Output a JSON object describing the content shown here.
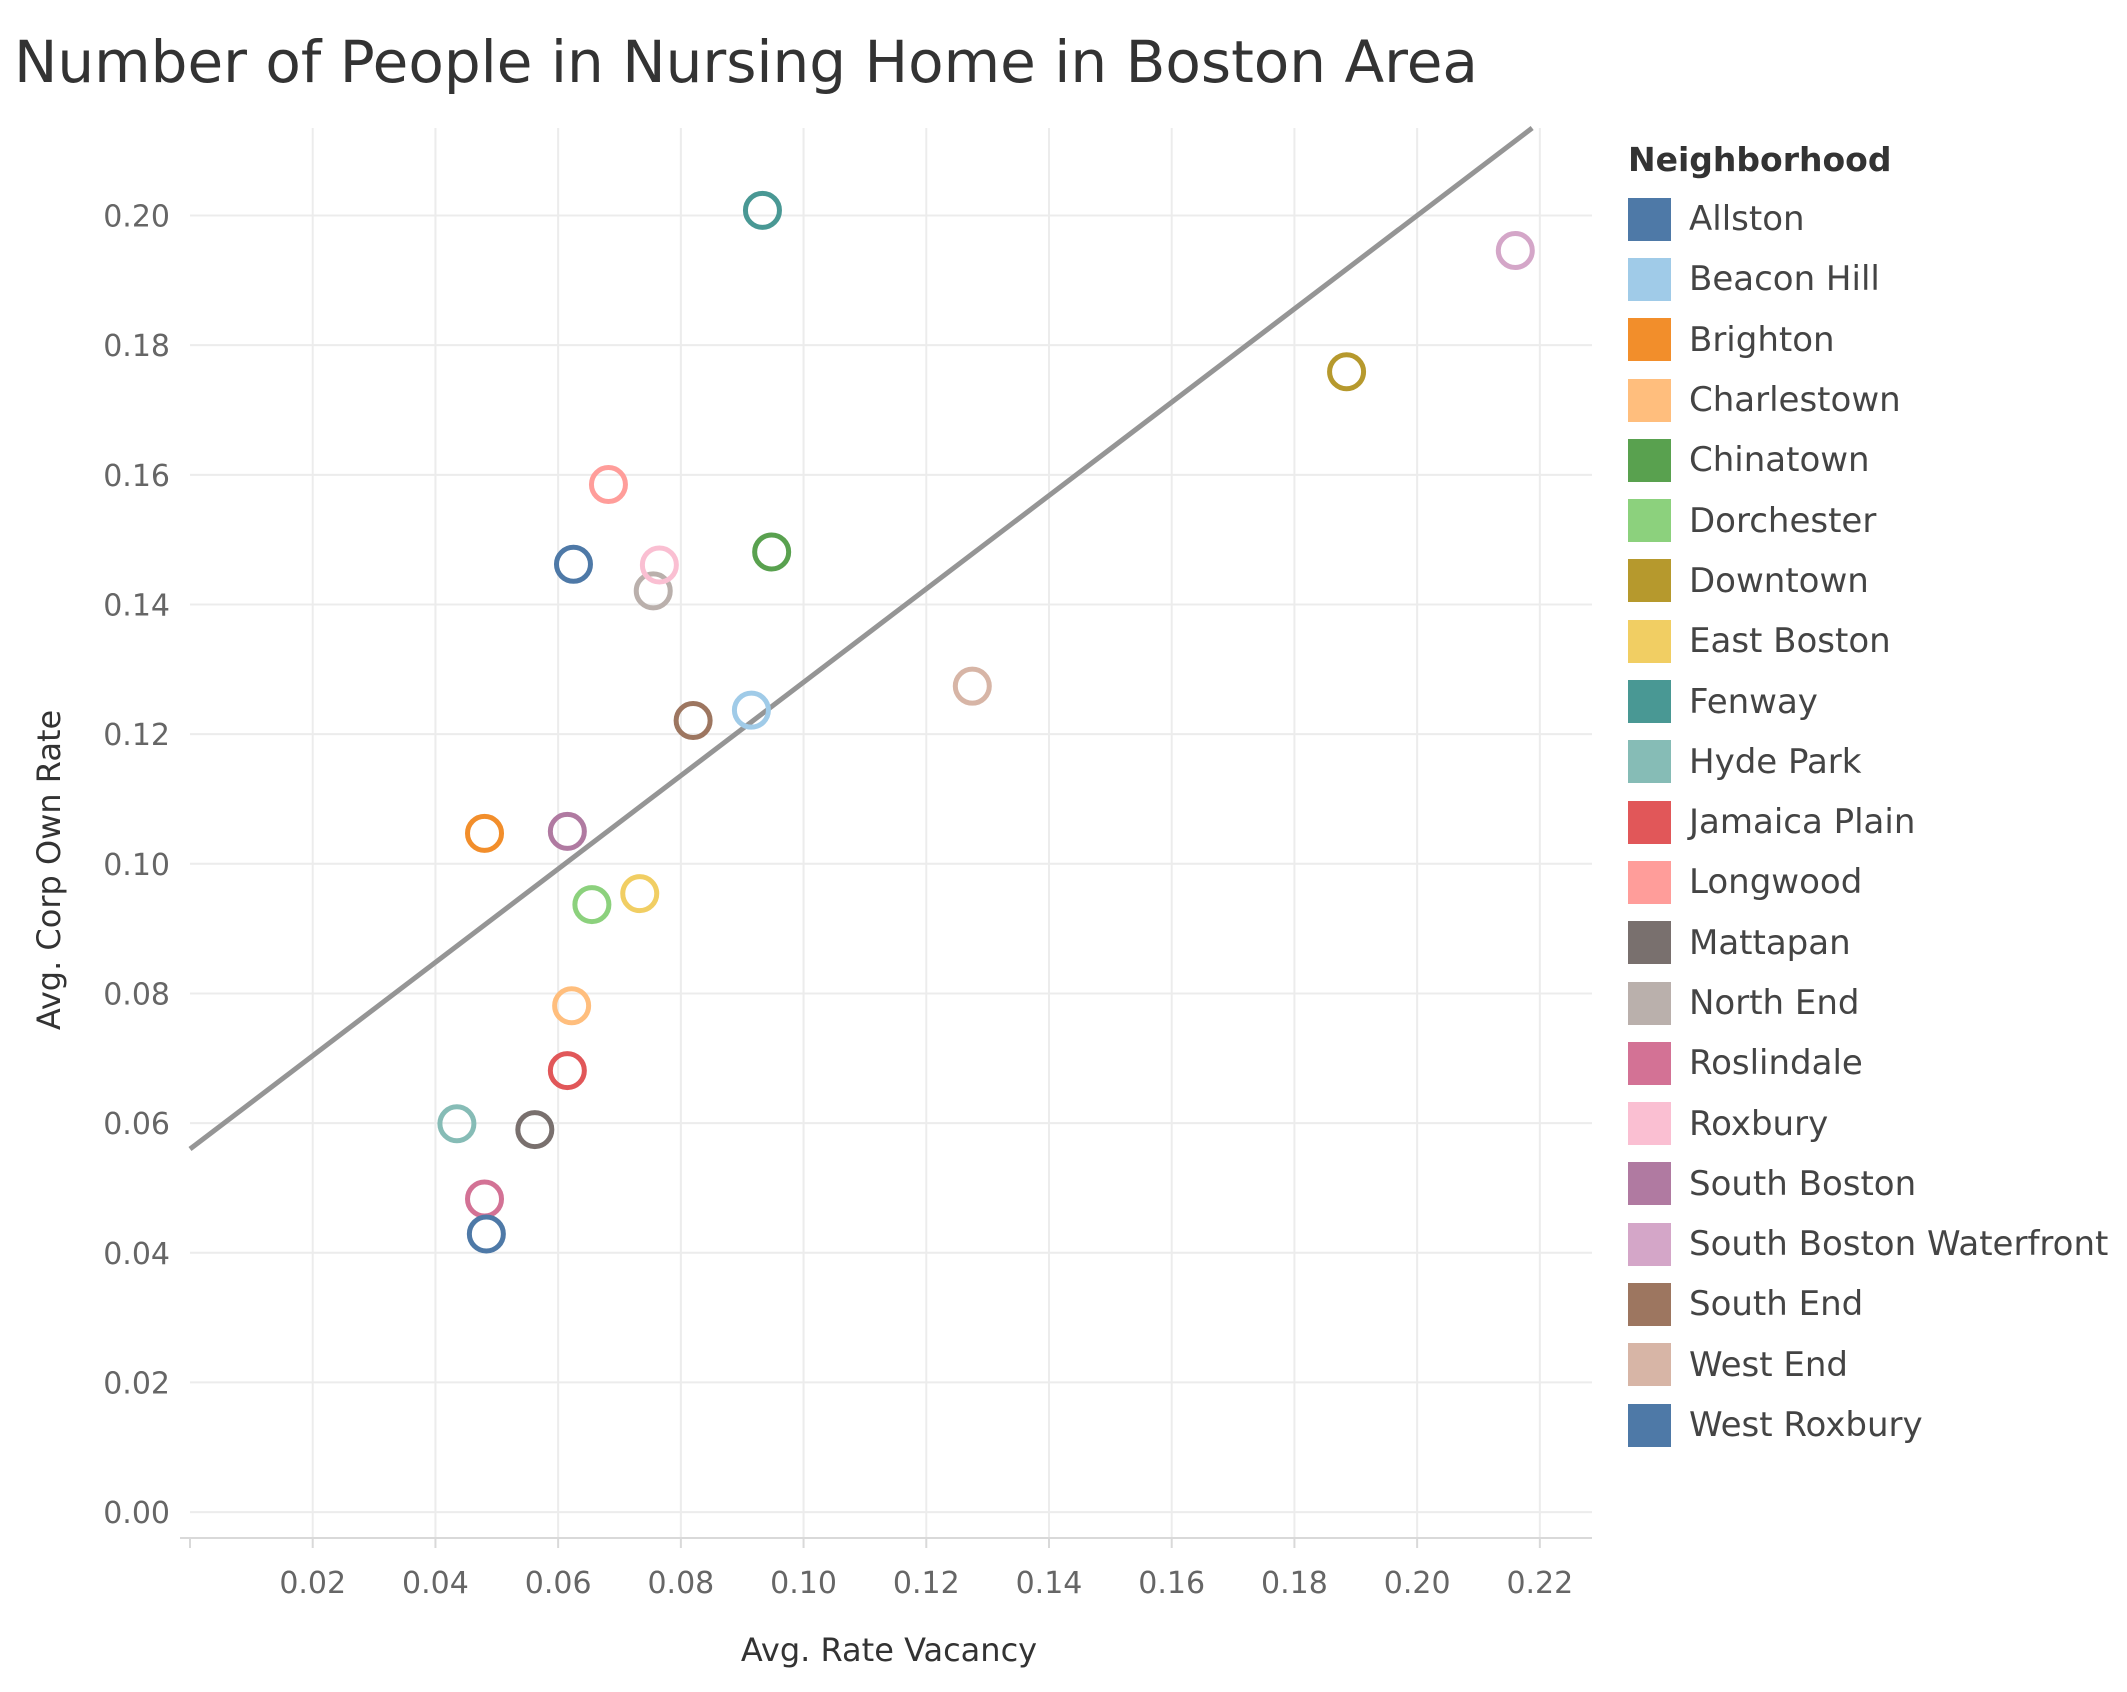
{
  "chart_data": {
    "type": "scatter",
    "title": "Number of People in Nursing Home in Boston Area",
    "xlabel": "Avg. Rate Vacancy",
    "ylabel": "Avg. Corp Own Rate",
    "xlim": [
      0.0,
      0.2285
    ],
    "ylim": [
      -0.004,
      0.2135
    ],
    "x_ticks": [
      "0.02",
      "0.04",
      "0.06",
      "0.08",
      "0.10",
      "0.12",
      "0.14",
      "0.16",
      "0.18",
      "0.20",
      "0.22"
    ],
    "y_ticks": [
      "0.00",
      "0.02",
      "0.04",
      "0.06",
      "0.08",
      "0.10",
      "0.12",
      "0.14",
      "0.16",
      "0.18",
      "0.20"
    ],
    "grid": true,
    "legend_title": "Neighborhood",
    "legend_position": "right",
    "trend_line": {
      "slope": 0.72,
      "intercept": 0.056,
      "color": "#959595"
    },
    "series": [
      {
        "name": "Allston",
        "color": "#4e79a7",
        "x": 0.0625,
        "y": 0.1462
      },
      {
        "name": "Beacon Hill",
        "color": "#a0cbe8",
        "x": 0.0915,
        "y": 0.1237
      },
      {
        "name": "Brighton",
        "color": "#f28e2b",
        "x": 0.048,
        "y": 0.1047
      },
      {
        "name": "Charlestown",
        "color": "#ffbe7d",
        "x": 0.0622,
        "y": 0.0781
      },
      {
        "name": "Chinatown",
        "color": "#59a14f",
        "x": 0.0948,
        "y": 0.1481
      },
      {
        "name": "Dorchester",
        "color": "#8cd17d",
        "x": 0.0655,
        "y": 0.0937
      },
      {
        "name": "Downtown",
        "color": "#b6992d",
        "x": 0.1885,
        "y": 0.1759
      },
      {
        "name": "East Boston",
        "color": "#f1ce63",
        "x": 0.0733,
        "y": 0.0954
      },
      {
        "name": "Fenway",
        "color": "#499894",
        "x": 0.0933,
        "y": 0.2008
      },
      {
        "name": "Hyde Park",
        "color": "#86bcb6",
        "x": 0.0435,
        "y": 0.0599
      },
      {
        "name": "Jamaica Plain",
        "color": "#e15759",
        "x": 0.0615,
        "y": 0.0681
      },
      {
        "name": "Longwood",
        "color": "#ff9d9a",
        "x": 0.0682,
        "y": 0.1585
      },
      {
        "name": "Mattapan",
        "color": "#79706e",
        "x": 0.0562,
        "y": 0.059
      },
      {
        "name": "North End",
        "color": "#bab0ac",
        "x": 0.0755,
        "y": 0.1421
      },
      {
        "name": "Roslindale",
        "color": "#d37295",
        "x": 0.048,
        "y": 0.0483
      },
      {
        "name": "Roxbury",
        "color": "#fabfd2",
        "x": 0.0765,
        "y": 0.1461
      },
      {
        "name": "South Boston",
        "color": "#b07aa1",
        "x": 0.0615,
        "y": 0.105
      },
      {
        "name": "South Boston Waterfront",
        "color": "#d4a6c8",
        "x": 0.216,
        "y": 0.1946
      },
      {
        "name": "South End",
        "color": "#9d7660",
        "x": 0.082,
        "y": 0.1221
      },
      {
        "name": "West End",
        "color": "#d7b5a6",
        "x": 0.1275,
        "y": 0.1274
      },
      {
        "name": "West Roxbury",
        "color": "#4e79a7",
        "x": 0.0483,
        "y": 0.0429
      }
    ]
  }
}
